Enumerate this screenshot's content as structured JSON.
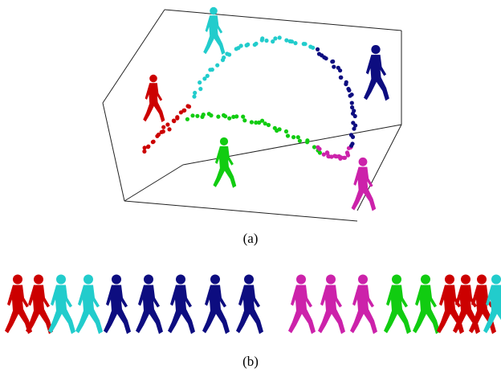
{
  "panel_a": {
    "caption": "(a)"
  },
  "panel_b": {
    "caption": "(b)"
  }
}
